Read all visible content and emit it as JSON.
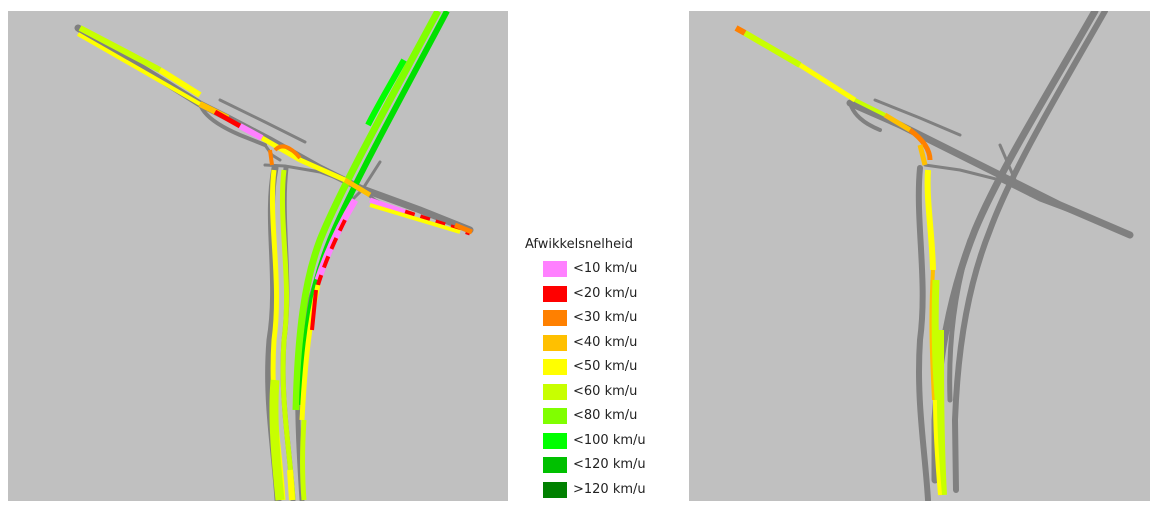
{
  "legend": {
    "title": "Afwikkelsnelheid",
    "items": [
      {
        "label": "<10 km/u",
        "color": "#ff80ff"
      },
      {
        "label": "<20 km/u",
        "color": "#ff0000"
      },
      {
        "label": "<30 km/u",
        "color": "#ff8000"
      },
      {
        "label": "<40 km/u",
        "color": "#ffc000"
      },
      {
        "label": "<50 km/u",
        "color": "#ffff00"
      },
      {
        "label": "<60 km/u",
        "color": "#c8ff00"
      },
      {
        "label": "<80 km/u",
        "color": "#80ff00"
      },
      {
        "label": "<100 km/u",
        "color": "#00ff00"
      },
      {
        "label": "<120 km/u",
        "color": "#00c000"
      },
      {
        "label": ">120 km/u",
        "color": "#008000"
      }
    ]
  },
  "colors": {
    "map_background": "#c0c0c0",
    "inactive_road": "#808080"
  }
}
